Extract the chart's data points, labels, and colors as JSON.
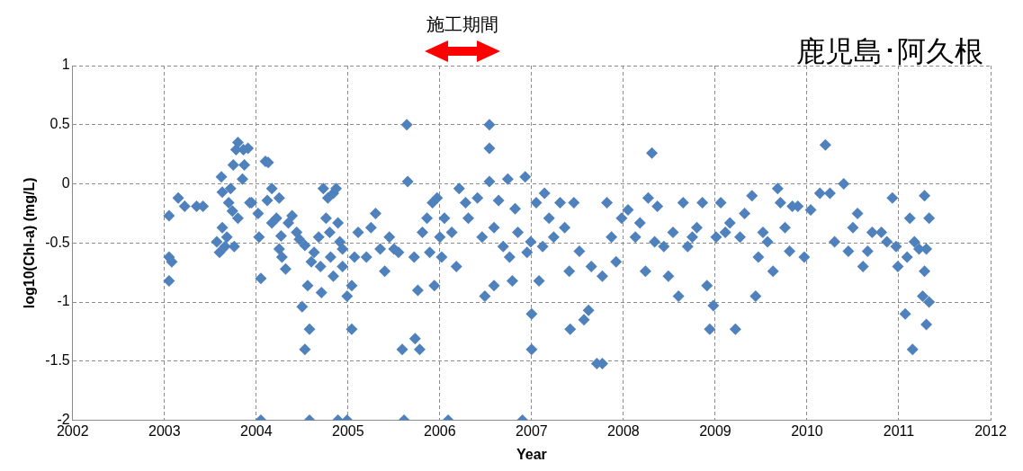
{
  "chart_data": {
    "type": "scatter",
    "title": "鹿児島･阿久根",
    "xlabel": "Year",
    "ylabel": "log10(Chl-a) (mg/L)",
    "xlim": [
      2002,
      2012
    ],
    "xticks": [
      2002,
      2003,
      2004,
      2005,
      2006,
      2007,
      2008,
      2009,
      2010,
      2011,
      2012
    ],
    "ylim": [
      -2,
      1
    ],
    "yticks": [
      -2,
      -1.5,
      -1,
      -0.5,
      0,
      0.5,
      1
    ],
    "grid": true,
    "marker": "diamond",
    "annotations": [
      "施工期間"
    ],
    "series": [
      {
        "color": "#4f81bd",
        "x": [
          2003.05,
          2003.05,
          2003.05,
          2003.08,
          2003.15,
          2003.22,
          2003.35,
          2003.42,
          2003.57,
          2003.6,
          2003.62,
          2003.63,
          2003.63,
          2003.66,
          2003.68,
          2003.7,
          2003.72,
          2003.75,
          2003.78,
          2003.8,
          2003.86,
          2003.87,
          2003.85,
          2003.91,
          2003.8,
          2003.76,
          2003.74,
          2003.93,
          2003.95,
          2004.02,
          2004.03,
          2004.05,
          2004.05,
          2004.1,
          2004.13,
          2004.12,
          2004.17,
          2004.22,
          2004.25,
          2004.27,
          2004.28,
          2004.32,
          2004.25,
          2004.17,
          2004.35,
          2004.39,
          2004.44,
          2004.47,
          2004.53,
          2004.5,
          2004.53,
          2004.56,
          2004.58,
          2004.58,
          2004.6,
          2004.63,
          2004.68,
          2004.7,
          2004.71,
          2004.73,
          2004.76,
          2004.78,
          2004.8,
          2004.81,
          2004.84,
          2004.84,
          2004.87,
          2004.89,
          2004.91,
          2004.89,
          2004.94,
          2004.94,
          2004.99,
          2004.99,
          2005.04,
          2005.04,
          2005.07,
          2005.11,
          2005.2,
          2005.25,
          2005.3,
          2005.35,
          2005.4,
          2005.45,
          2005.5,
          2005.55,
          2005.59,
          2005.61,
          2005.64,
          2005.65,
          2005.72,
          2005.73,
          2005.78,
          2005.76,
          2005.81,
          2005.86,
          2005.89,
          2005.92,
          2005.94,
          2005.97,
          2006.0,
          2006.02,
          2006.05,
          2006.09,
          2006.13,
          2006.18,
          2006.21,
          2006.28,
          2006.31,
          2006.41,
          2006.46,
          2006.49,
          2006.54,
          2006.54,
          2006.54,
          2006.59,
          2006.59,
          2006.64,
          2006.69,
          2006.74,
          2006.76,
          2006.79,
          2006.82,
          2006.85,
          2006.9,
          2006.93,
          2006.95,
          2006.99,
          2007.0,
          2007.0,
          2007.05,
          2007.08,
          2007.12,
          2007.14,
          2007.19,
          2007.24,
          2007.31,
          2007.36,
          2007.41,
          2007.46,
          2007.42,
          2007.52,
          2007.57,
          2007.62,
          2007.65,
          2007.71,
          2007.77,
          2007.77,
          2007.82,
          2007.87,
          2007.92,
          2007.98,
          2008.05,
          2008.13,
          2008.18,
          2008.24,
          2008.27,
          2008.31,
          2008.34,
          2008.37,
          2008.44,
          2008.49,
          2008.54,
          2008.6,
          2008.65,
          2008.7,
          2008.75,
          2008.8,
          2008.86,
          2008.91,
          2008.94,
          2008.98,
          2009.01,
          2009.06,
          2009.11,
          2009.16,
          2009.22,
          2009.27,
          2009.32,
          2009.4,
          2009.44,
          2009.47,
          2009.52,
          2009.57,
          2009.63,
          2009.68,
          2009.71,
          2009.76,
          2009.81,
          2009.84,
          2009.9,
          2009.97,
          2010.04,
          2010.14,
          2010.2,
          2010.25,
          2010.3,
          2010.4,
          2010.45,
          2010.5,
          2010.55,
          2010.61,
          2010.66,
          2010.71,
          2010.81,
          2010.87,
          2010.93,
          2010.97,
          2010.99,
          2011.07,
          2011.09,
          2011.12,
          2011.15,
          2011.17,
          2011.22,
          2011.26,
          2011.28,
          2011.3,
          2011.28,
          2011.3,
          2011.33,
          2011.33
        ],
        "values": [
          -0.62,
          -0.82,
          -0.27,
          -0.66,
          -0.12,
          -0.19,
          -0.19,
          -0.19,
          -0.49,
          -0.58,
          0.06,
          -0.07,
          -0.37,
          -0.53,
          -0.45,
          -0.16,
          -0.04,
          0.16,
          0.29,
          0.35,
          0.29,
          0.16,
          0.04,
          0.3,
          -0.29,
          -0.53,
          -0.23,
          -0.16,
          -0.16,
          -0.25,
          -0.45,
          -0.8,
          -2,
          0.19,
          0.18,
          -0.14,
          -0.04,
          -0.29,
          -0.12,
          -0.44,
          -0.62,
          -0.72,
          -0.55,
          -0.33,
          -0.33,
          -0.27,
          -0.41,
          -0.47,
          -0.52,
          -1.04,
          -1.4,
          -0.86,
          -1.23,
          -2,
          -0.66,
          -0.58,
          -0.45,
          -0.7,
          -0.92,
          -0.04,
          -0.29,
          -0.12,
          -0.41,
          -0.62,
          -0.78,
          -0.08,
          -0.04,
          -0.33,
          -0.49,
          -2,
          -0.55,
          -0.7,
          -2,
          -0.95,
          -0.86,
          -1.23,
          -0.62,
          -0.41,
          -0.62,
          -0.37,
          -0.25,
          -0.55,
          -0.74,
          -0.45,
          -0.55,
          -0.58,
          -1.4,
          -2,
          0.5,
          0.02,
          -0.62,
          -1.31,
          -1.4,
          -0.9,
          -0.41,
          -0.29,
          -0.58,
          -0.16,
          -0.86,
          -0.12,
          -0.45,
          -0.62,
          -0.29,
          -2,
          -0.41,
          -0.7,
          -0.04,
          -0.16,
          -0.29,
          -0.12,
          -0.45,
          -0.95,
          0.5,
          0.3,
          0.02,
          -0.37,
          -0.86,
          -0.14,
          -0.53,
          0.04,
          -0.62,
          -0.82,
          -0.21,
          -0.41,
          -2,
          0.06,
          -0.58,
          -0.49,
          -1.1,
          -1.4,
          -0.16,
          -0.82,
          -0.53,
          -0.08,
          -0.29,
          -0.45,
          -0.16,
          -0.37,
          -0.74,
          -0.16,
          -1.23,
          -0.57,
          -1.15,
          -1.07,
          -0.7,
          -1.52,
          -1.52,
          -0.78,
          -0.16,
          -0.45,
          -0.66,
          -0.29,
          -0.22,
          -0.45,
          -0.33,
          -0.74,
          -0.12,
          0.26,
          -0.49,
          -0.19,
          -0.53,
          -0.78,
          -0.41,
          -0.95,
          -0.16,
          -0.53,
          -0.45,
          -0.37,
          -0.16,
          -0.86,
          -1.23,
          -1.03,
          -0.45,
          -0.16,
          -0.41,
          -0.33,
          -1.23,
          -0.45,
          -0.25,
          -0.1,
          -0.95,
          -0.62,
          -0.41,
          -0.49,
          -0.74,
          -0.04,
          -0.16,
          -0.37,
          -0.57,
          -0.19,
          -0.19,
          -0.62,
          -0.22,
          -0.08,
          0.33,
          -0.08,
          -0.49,
          0.0,
          -0.57,
          -0.37,
          -0.25,
          -0.7,
          -0.57,
          -0.41,
          -0.41,
          -0.49,
          -0.12,
          -0.53,
          -0.7,
          -1.1,
          -0.62,
          -0.29,
          -1.4,
          -0.49,
          -0.55,
          -0.95,
          -0.1,
          -1.19,
          -0.74,
          -0.55,
          -0.29,
          -1.0
        ]
      }
    ]
  }
}
